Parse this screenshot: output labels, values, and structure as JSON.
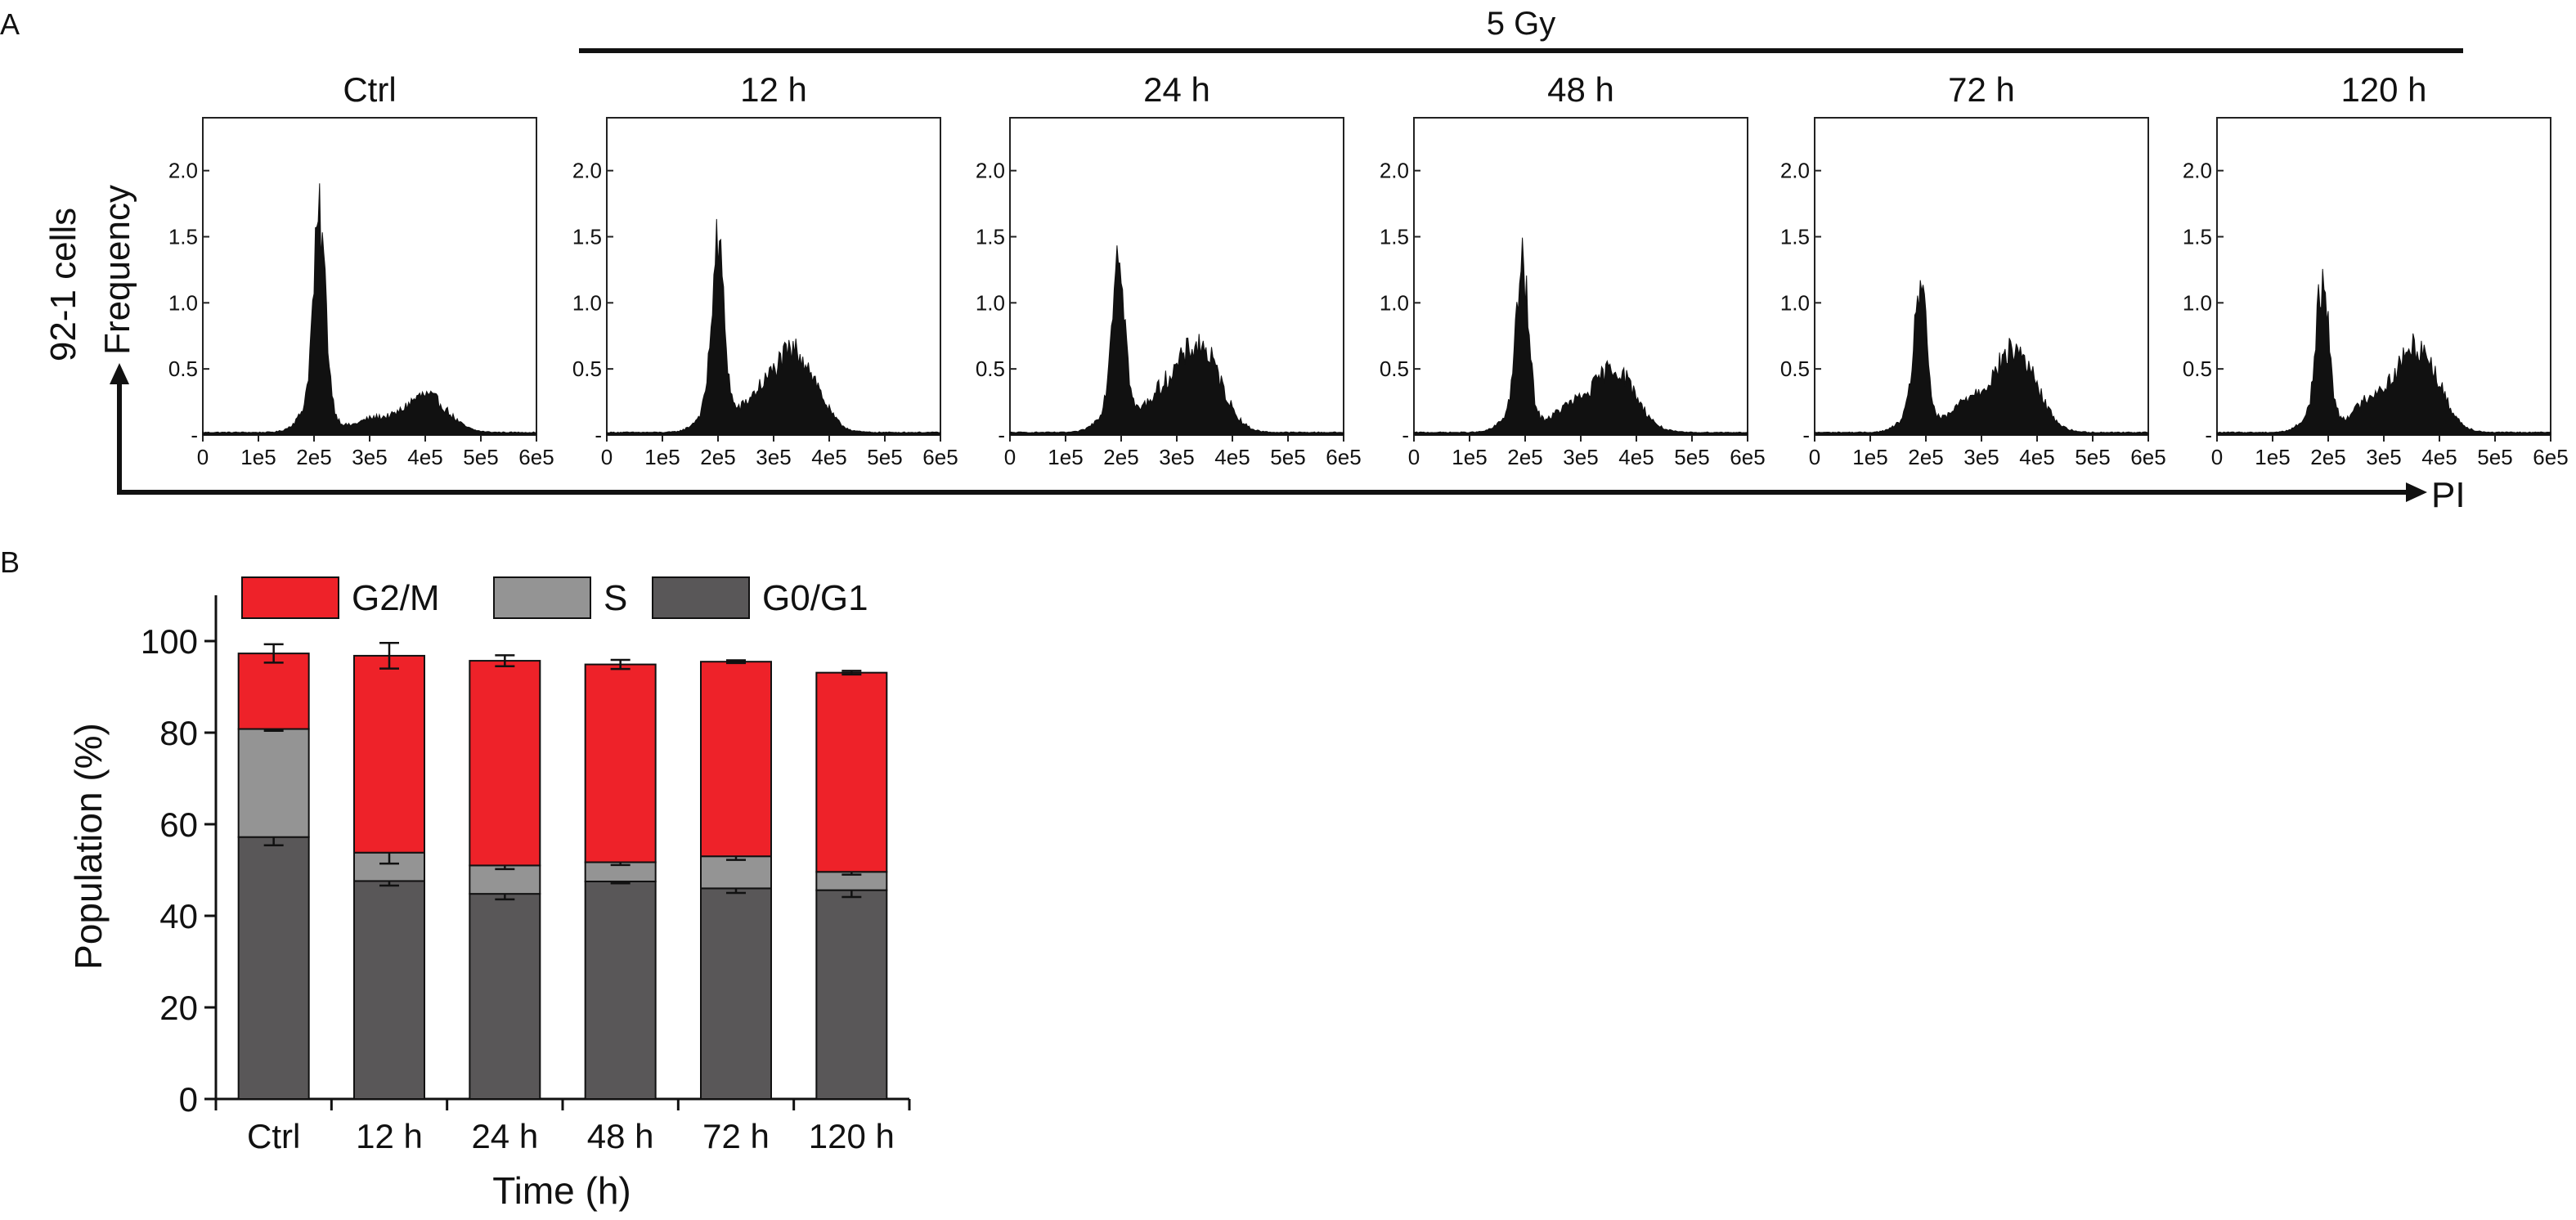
{
  "panel_a": {
    "label": "A",
    "treatment_label": "5 Gy",
    "row_label": "92-1 cells",
    "y_axis_label": "Frequency",
    "x_axis_label": "PI",
    "chart_data": {
      "type": "histogram",
      "x_ticks": [
        "0",
        "1e5",
        "2e5",
        "3e5",
        "4e5",
        "5e5",
        "6e5"
      ],
      "x_range": [
        0,
        600000
      ],
      "y_ticks": [
        "0.5",
        "1.0",
        "1.5",
        "2.0"
      ],
      "y_range": [
        0,
        2.4
      ],
      "panels": [
        {
          "title": "Ctrl",
          "g1_peak": 1.6,
          "g1_center": 210000,
          "g2_peak": 0.28,
          "g2_center": 400000,
          "y_ticks": [
            "0.5",
            "1.0",
            "1.5",
            "2.0"
          ]
        },
        {
          "title": "12 h",
          "g1_peak": 1.4,
          "g1_center": 200000,
          "g2_peak": 0.6,
          "g2_center": 340000,
          "y_ticks": [
            "0.5",
            "1.0",
            "1.5",
            "2.0"
          ]
        },
        {
          "title": "24 h",
          "g1_peak": 1.42,
          "g1_center": 195000,
          "g2_peak": 0.65,
          "g2_center": 340000,
          "y_ticks": [
            "0.5",
            "1.0",
            "1.5",
            "2.0"
          ]
        },
        {
          "title": "48 h",
          "g1_peak": 1.25,
          "g1_center": 195000,
          "g2_peak": 0.48,
          "g2_center": 360000,
          "y_ticks": [
            "0.5",
            "1.0",
            "1.5",
            "2.0"
          ]
        },
        {
          "title": "72 h",
          "g1_peak": 1.12,
          "g1_center": 190000,
          "g2_peak": 0.62,
          "g2_center": 360000,
          "y_ticks": [
            "0.5",
            "1.0",
            "1.5",
            "2.0"
          ]
        },
        {
          "title": "120 h",
          "g1_peak": 1.15,
          "g1_center": 190000,
          "g2_peak": 0.65,
          "g2_center": 360000,
          "y_ticks": [
            "0.5",
            "1.0",
            "1.5",
            "2.0"
          ]
        }
      ]
    }
  },
  "panel_b": {
    "label": "B",
    "chart_data": {
      "type": "bar",
      "stacked": true,
      "xlabel": "Time (h)",
      "ylabel": "Population (%)",
      "ylim": [
        0,
        110
      ],
      "y_ticks": [
        0,
        20,
        40,
        60,
        80,
        100
      ],
      "categories": [
        "Ctrl",
        "12 h",
        "24 h",
        "48 h",
        "72 h",
        "120 h"
      ],
      "legend": [
        "G2/M",
        "S",
        "G0/G1"
      ],
      "series": [
        {
          "name": "G0/G1",
          "color": "#595758",
          "values": [
            57.2,
            47.6,
            44.8,
            47.5,
            46.0,
            45.6
          ],
          "errors": [
            1.8,
            1.0,
            1.2,
            0.4,
            1.0,
            1.5
          ]
        },
        {
          "name": "S",
          "color": "#949494",
          "values": [
            23.6,
            6.2,
            6.2,
            4.2,
            7.0,
            4.0
          ],
          "errors": [
            0.4,
            2.4,
            0.8,
            0.6,
            0.8,
            0.6
          ]
        },
        {
          "name": "G2/M",
          "color": "#ee2229",
          "values": [
            16.5,
            43.0,
            44.7,
            43.2,
            42.5,
            43.5
          ],
          "errors": [
            2.0,
            2.8,
            1.2,
            1.0,
            0.3,
            0.4
          ]
        }
      ]
    }
  }
}
